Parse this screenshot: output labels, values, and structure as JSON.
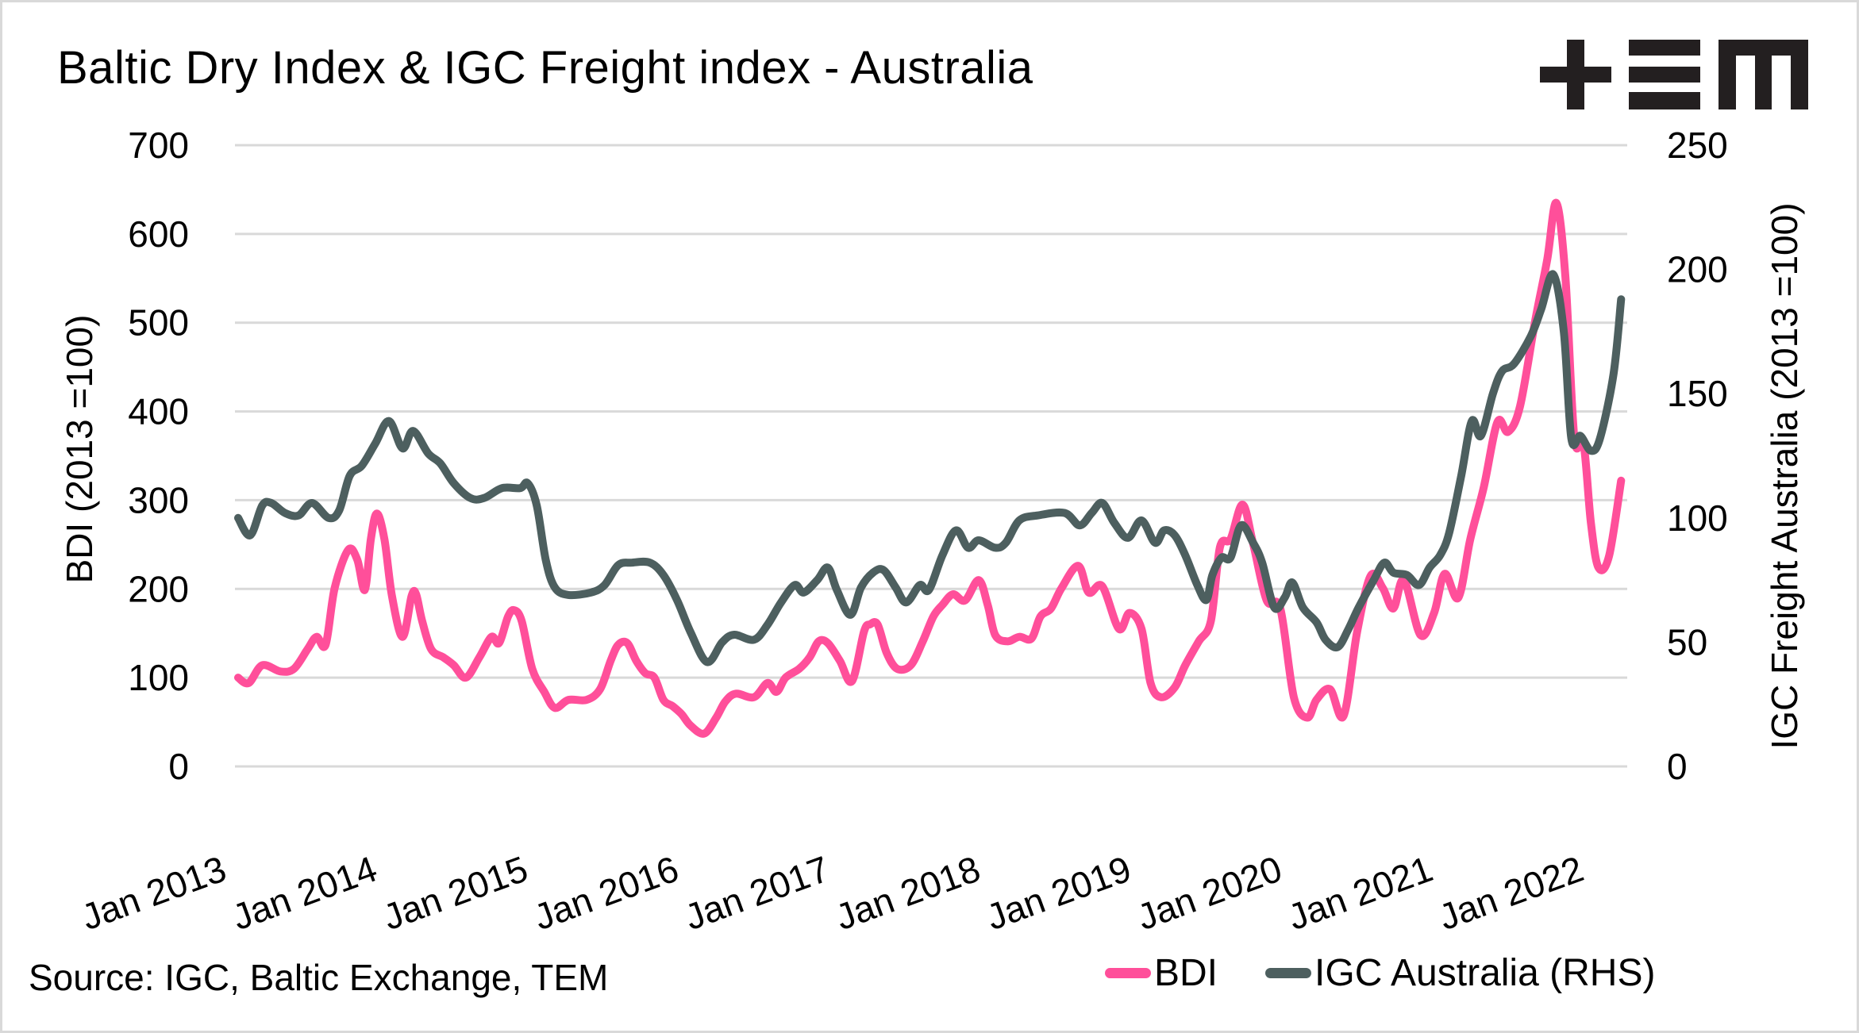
{
  "header": {
    "title": "Baltic Dry Index & IGC Freight index - Australia",
    "logo_text": "+EM"
  },
  "footer": {
    "source": "Source: IGC, Baltic Exchange, TEM"
  },
  "colors": {
    "bdi": "#ff4f9a",
    "igc": "#4d5f5f",
    "grid": "#d9d9d9"
  },
  "chart_data": {
    "type": "line",
    "title": "Baltic Dry Index & IGC Freight index - Australia",
    "xlabel": "",
    "ylabel": "BDI (2013 =100)",
    "y2label": "IGC Freight Australia (2013 =100)",
    "xlim": [
      2013.0,
      2022.2
    ],
    "ylim": [
      0,
      700
    ],
    "y2lim": [
      0,
      250
    ],
    "yticks": [
      "0",
      "100",
      "200",
      "300",
      "400",
      "500",
      "600",
      "700"
    ],
    "y2ticks": [
      "0",
      "50",
      "100",
      "150",
      "200",
      "250"
    ],
    "xticks": [
      {
        "x": 2013.0,
        "label": "Jan 2013"
      },
      {
        "x": 2014.0,
        "label": "Jan 2014"
      },
      {
        "x": 2015.0,
        "label": "Jan 2015"
      },
      {
        "x": 2016.0,
        "label": "Jan 2016"
      },
      {
        "x": 2017.0,
        "label": "Jan 2017"
      },
      {
        "x": 2018.0,
        "label": "Jan 2018"
      },
      {
        "x": 2019.0,
        "label": "Jan 2019"
      },
      {
        "x": 2020.0,
        "label": "Jan 2020"
      },
      {
        "x": 2021.0,
        "label": "Jan 2021"
      },
      {
        "x": 2022.0,
        "label": "Jan 2022"
      }
    ],
    "grid": true,
    "legend_position": "bottom-right",
    "series": [
      {
        "name": "BDI",
        "axis": "left",
        "points": [
          [
            2013.0,
            100
          ],
          [
            2013.07,
            94
          ],
          [
            2013.16,
            114
          ],
          [
            2013.28,
            107
          ],
          [
            2013.37,
            110
          ],
          [
            2013.46,
            132
          ],
          [
            2013.52,
            146
          ],
          [
            2013.58,
            137
          ],
          [
            2013.64,
            201
          ],
          [
            2013.73,
            244
          ],
          [
            2013.79,
            233
          ],
          [
            2013.84,
            199
          ],
          [
            2013.88,
            256
          ],
          [
            2013.92,
            285
          ],
          [
            2013.97,
            256
          ],
          [
            2014.02,
            192
          ],
          [
            2014.09,
            146
          ],
          [
            2014.15,
            192
          ],
          [
            2014.18,
            194
          ],
          [
            2014.22,
            164
          ],
          [
            2014.28,
            132
          ],
          [
            2014.36,
            123
          ],
          [
            2014.43,
            114
          ],
          [
            2014.51,
            100
          ],
          [
            2014.6,
            123
          ],
          [
            2014.68,
            146
          ],
          [
            2014.73,
            139
          ],
          [
            2014.79,
            169
          ],
          [
            2014.83,
            176
          ],
          [
            2014.88,
            164
          ],
          [
            2014.95,
            110
          ],
          [
            2015.03,
            84
          ],
          [
            2015.1,
            66
          ],
          [
            2015.19,
            75
          ],
          [
            2015.31,
            75
          ],
          [
            2015.4,
            87
          ],
          [
            2015.47,
            119
          ],
          [
            2015.52,
            137
          ],
          [
            2015.58,
            139
          ],
          [
            2015.64,
            119
          ],
          [
            2015.7,
            105
          ],
          [
            2015.76,
            100
          ],
          [
            2015.82,
            75
          ],
          [
            2015.88,
            68
          ],
          [
            2015.94,
            59
          ],
          [
            2016.0,
            46
          ],
          [
            2016.09,
            37
          ],
          [
            2016.17,
            55
          ],
          [
            2016.23,
            73
          ],
          [
            2016.3,
            82
          ],
          [
            2016.42,
            78
          ],
          [
            2016.51,
            94
          ],
          [
            2016.57,
            84
          ],
          [
            2016.63,
            100
          ],
          [
            2016.72,
            110
          ],
          [
            2016.79,
            123
          ],
          [
            2016.85,
            141
          ],
          [
            2016.91,
            139
          ],
          [
            2016.99,
            119
          ],
          [
            2017.07,
            96
          ],
          [
            2017.15,
            152
          ],
          [
            2017.19,
            160
          ],
          [
            2017.24,
            160
          ],
          [
            2017.3,
            128
          ],
          [
            2017.37,
            110
          ],
          [
            2017.46,
            114
          ],
          [
            2017.54,
            141
          ],
          [
            2017.61,
            169
          ],
          [
            2017.67,
            182
          ],
          [
            2017.74,
            194
          ],
          [
            2017.82,
            187
          ],
          [
            2017.91,
            210
          ],
          [
            2017.97,
            182
          ],
          [
            2018.02,
            148
          ],
          [
            2018.1,
            141
          ],
          [
            2018.18,
            146
          ],
          [
            2018.26,
            144
          ],
          [
            2018.32,
            169
          ],
          [
            2018.39,
            178
          ],
          [
            2018.46,
            201
          ],
          [
            2018.57,
            226
          ],
          [
            2018.64,
            196
          ],
          [
            2018.73,
            203
          ],
          [
            2018.84,
            155
          ],
          [
            2018.91,
            173
          ],
          [
            2018.99,
            155
          ],
          [
            2019.05,
            94
          ],
          [
            2019.12,
            78
          ],
          [
            2019.21,
            89
          ],
          [
            2019.28,
            114
          ],
          [
            2019.37,
            141
          ],
          [
            2019.45,
            164
          ],
          [
            2019.51,
            247
          ],
          [
            2019.58,
            256
          ],
          [
            2019.66,
            295
          ],
          [
            2019.73,
            251
          ],
          [
            2019.82,
            187
          ],
          [
            2019.91,
            178
          ],
          [
            2020.0,
            78
          ],
          [
            2020.09,
            55
          ],
          [
            2020.15,
            75
          ],
          [
            2020.24,
            87
          ],
          [
            2020.33,
            57
          ],
          [
            2020.42,
            152
          ],
          [
            2020.51,
            215
          ],
          [
            2020.59,
            201
          ],
          [
            2020.66,
            178
          ],
          [
            2020.73,
            210
          ],
          [
            2020.84,
            148
          ],
          [
            2020.93,
            173
          ],
          [
            2021.0,
            217
          ],
          [
            2021.09,
            190
          ],
          [
            2021.17,
            256
          ],
          [
            2021.26,
            315
          ],
          [
            2021.35,
            388
          ],
          [
            2021.42,
            377
          ],
          [
            2021.5,
            406
          ],
          [
            2021.6,
            502
          ],
          [
            2021.68,
            571
          ],
          [
            2021.74,
            635
          ],
          [
            2021.8,
            553
          ],
          [
            2021.86,
            370
          ],
          [
            2021.92,
            365
          ],
          [
            2021.97,
            274
          ],
          [
            2022.02,
            224
          ],
          [
            2022.09,
            237
          ],
          [
            2022.17,
            322
          ]
        ]
      },
      {
        "name": "IGC Australia (RHS)",
        "axis": "right",
        "points": [
          [
            2013.0,
            100
          ],
          [
            2013.08,
            93
          ],
          [
            2013.16,
            105
          ],
          [
            2013.22,
            106
          ],
          [
            2013.31,
            102
          ],
          [
            2013.4,
            101
          ],
          [
            2013.49,
            106
          ],
          [
            2013.6,
            100
          ],
          [
            2013.67,
            103
          ],
          [
            2013.74,
            117
          ],
          [
            2013.82,
            121
          ],
          [
            2013.91,
            130
          ],
          [
            2014.0,
            139
          ],
          [
            2014.09,
            128
          ],
          [
            2014.16,
            135
          ],
          [
            2014.26,
            126
          ],
          [
            2014.34,
            122
          ],
          [
            2014.43,
            114
          ],
          [
            2014.54,
            108
          ],
          [
            2014.63,
            108
          ],
          [
            2014.75,
            112
          ],
          [
            2014.87,
            112
          ],
          [
            2014.92,
            114
          ],
          [
            2014.98,
            105
          ],
          [
            2015.04,
            83
          ],
          [
            2015.1,
            72
          ],
          [
            2015.19,
            69
          ],
          [
            2015.34,
            70
          ],
          [
            2015.43,
            73
          ],
          [
            2015.52,
            81
          ],
          [
            2015.61,
            82
          ],
          [
            2015.73,
            82
          ],
          [
            2015.82,
            77
          ],
          [
            2015.91,
            67
          ],
          [
            2016.0,
            54
          ],
          [
            2016.11,
            42
          ],
          [
            2016.21,
            50
          ],
          [
            2016.29,
            53
          ],
          [
            2016.42,
            51
          ],
          [
            2016.51,
            57
          ],
          [
            2016.6,
            66
          ],
          [
            2016.69,
            73
          ],
          [
            2016.75,
            70
          ],
          [
            2016.84,
            75
          ],
          [
            2016.91,
            80
          ],
          [
            2016.97,
            71
          ],
          [
            2017.06,
            61
          ],
          [
            2017.13,
            72
          ],
          [
            2017.21,
            78
          ],
          [
            2017.28,
            79
          ],
          [
            2017.36,
            72
          ],
          [
            2017.43,
            66
          ],
          [
            2017.52,
            73
          ],
          [
            2017.58,
            71
          ],
          [
            2017.67,
            85
          ],
          [
            2017.76,
            95
          ],
          [
            2017.84,
            88
          ],
          [
            2017.91,
            91
          ],
          [
            2018.02,
            88
          ],
          [
            2018.09,
            90
          ],
          [
            2018.18,
            99
          ],
          [
            2018.3,
            101
          ],
          [
            2018.48,
            102
          ],
          [
            2018.58,
            97
          ],
          [
            2018.66,
            102
          ],
          [
            2018.73,
            106
          ],
          [
            2018.81,
            98
          ],
          [
            2018.9,
            92
          ],
          [
            2018.99,
            99
          ],
          [
            2019.08,
            90
          ],
          [
            2019.14,
            95
          ],
          [
            2019.21,
            93
          ],
          [
            2019.28,
            85
          ],
          [
            2019.36,
            73
          ],
          [
            2019.42,
            67
          ],
          [
            2019.46,
            77
          ],
          [
            2019.52,
            84
          ],
          [
            2019.58,
            84
          ],
          [
            2019.65,
            97
          ],
          [
            2019.73,
            90
          ],
          [
            2019.79,
            82
          ],
          [
            2019.87,
            64
          ],
          [
            2019.94,
            68
          ],
          [
            2019.99,
            74
          ],
          [
            2020.06,
            64
          ],
          [
            2020.15,
            58
          ],
          [
            2020.21,
            51
          ],
          [
            2020.29,
            48
          ],
          [
            2020.36,
            55
          ],
          [
            2020.43,
            64
          ],
          [
            2020.53,
            75
          ],
          [
            2020.6,
            82
          ],
          [
            2020.66,
            78
          ],
          [
            2020.75,
            77
          ],
          [
            2020.83,
            73
          ],
          [
            2020.9,
            80
          ],
          [
            2020.97,
            85
          ],
          [
            2021.03,
            94
          ],
          [
            2021.11,
            117
          ],
          [
            2021.18,
            139
          ],
          [
            2021.24,
            133
          ],
          [
            2021.32,
            150
          ],
          [
            2021.38,
            159
          ],
          [
            2021.46,
            162
          ],
          [
            2021.57,
            173
          ],
          [
            2021.64,
            184
          ],
          [
            2021.72,
            198
          ],
          [
            2021.79,
            175
          ],
          [
            2021.84,
            132
          ],
          [
            2021.9,
            133
          ],
          [
            2021.97,
            127
          ],
          [
            2022.03,
            132
          ],
          [
            2022.12,
            158
          ],
          [
            2022.17,
            188
          ]
        ]
      }
    ]
  }
}
